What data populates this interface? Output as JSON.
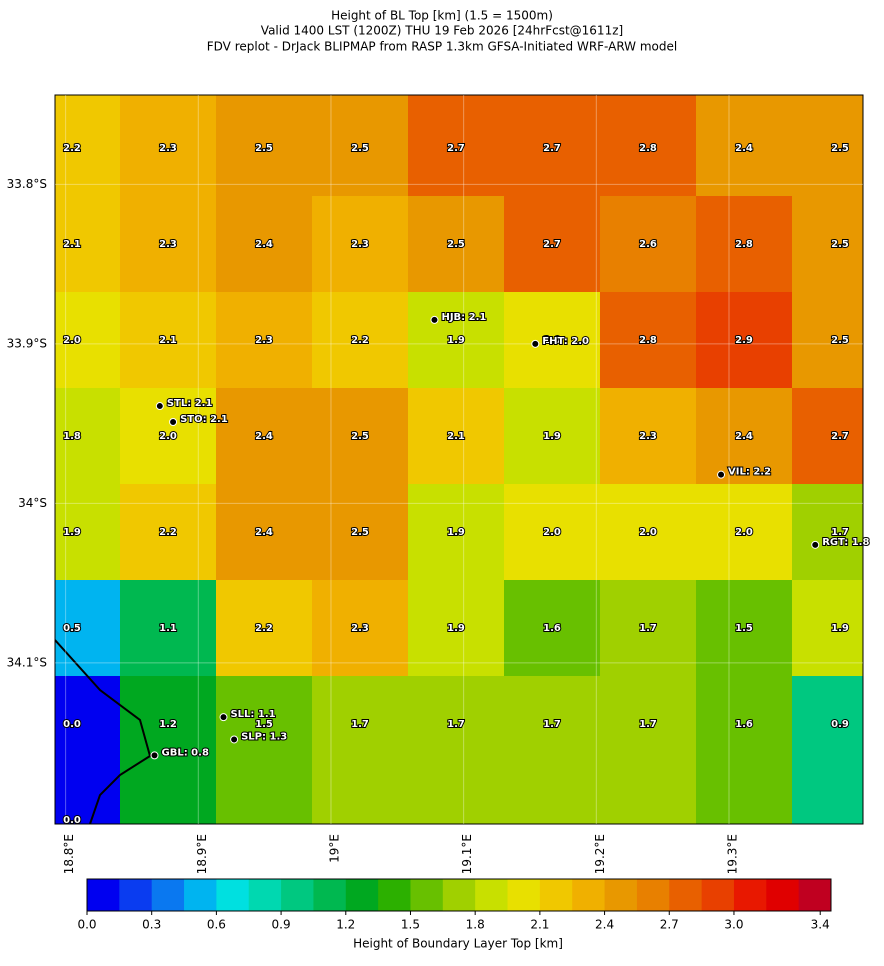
{
  "chart_data": {
    "type": "heatmap",
    "title": "Height of BL Top [km] (1.5 = 1500m)",
    "subtitle": "Valid 1400 LST (1200Z) THU 19 Feb 2026 [24hrFcst@1611z]",
    "caption": "FDV replot - DrJack BLIPMAP from RASP 1.3km GFSA-Initiated WRF-ARW model",
    "xlim": [
      18.792,
      19.401
    ],
    "ylim": [
      -34.201,
      -33.744
    ],
    "xticks": [
      {
        "value": 18.8,
        "label": "18.8°E"
      },
      {
        "value": 18.9,
        "label": "18.9°E"
      },
      {
        "value": 19,
        "label": "19°E"
      },
      {
        "value": 19.1,
        "label": "19.1°E"
      },
      {
        "value": 19.2,
        "label": "19.2°E"
      },
      {
        "value": 19.3,
        "label": "19.3°E"
      }
    ],
    "yticks": [
      {
        "value": -33.8,
        "label": "33.8°S"
      },
      {
        "value": -33.9,
        "label": "33.9°S"
      },
      {
        "value": -34,
        "label": "34°S"
      },
      {
        "value": -34.1,
        "label": "34.1°S"
      }
    ],
    "grid": {
      "values": [
        [
          2.2,
          2.3,
          2.5,
          2.5,
          2.7,
          2.7,
          2.8,
          2.4,
          2.5
        ],
        [
          2.1,
          2.3,
          2.4,
          2.3,
          2.5,
          2.7,
          2.6,
          2.8,
          2.5
        ],
        [
          2,
          2.1,
          2.3,
          2.2,
          1.9,
          2,
          2.8,
          2.9,
          2.5
        ],
        [
          1.8,
          2,
          2.4,
          2.5,
          2.1,
          1.9,
          2.3,
          2.4,
          2.7
        ],
        [
          1.9,
          2.2,
          2.4,
          2.5,
          1.9,
          2,
          2,
          2,
          1.7
        ],
        [
          0.5,
          1.1,
          2.2,
          2.3,
          1.9,
          1.6,
          1.7,
          1.5,
          1.9
        ],
        [
          0,
          1.2,
          1.5,
          1.7,
          1.7,
          1.7,
          1.7,
          1.6,
          0.9
        ],
        [
          0,
          null,
          null,
          null,
          null,
          null,
          null,
          null,
          null
        ]
      ],
      "value_labels": [
        [
          "2.2",
          "2.3",
          "2.5",
          "2.5",
          "2.7",
          "2.7",
          "2.8",
          "2.4",
          "2.5"
        ],
        [
          "2.1",
          "2.3",
          "2.4",
          "2.3",
          "2.5",
          "2.7",
          "2.6",
          "2.8",
          "2.5"
        ],
        [
          "2.0",
          "2.1",
          "2.3",
          "2.2",
          "1.9",
          "2.0",
          "2.8",
          "2.9",
          "2.5"
        ],
        [
          "1.8",
          "2.0",
          "2.4",
          "2.5",
          "2.1",
          "1.9",
          "2.3",
          "2.4",
          "2.7"
        ],
        [
          "1.9",
          "2.2",
          "2.4",
          "2.5",
          "1.9",
          "2.0",
          "2.0",
          "2.0",
          "1.7"
        ],
        [
          "0.5",
          "1.1",
          "2.2",
          "2.3",
          "1.9",
          "1.6",
          "1.7",
          "1.5",
          "1.9"
        ],
        [
          "0.0",
          "1.2",
          "1.5",
          "1.7",
          "1.7",
          "1.7",
          "1.7",
          "1.6",
          "0.9"
        ],
        [
          "0.0",
          null,
          null,
          null,
          null,
          null,
          null,
          null,
          null
        ]
      ]
    },
    "stations": [
      {
        "label": "HJB: 2.1",
        "lon": 19.078,
        "lat": -33.885
      },
      {
        "label": "FHT: 2.0",
        "lon": 19.154,
        "lat": -33.9
      },
      {
        "label": "STL: 2.1",
        "lon": 18.871,
        "lat": -33.939
      },
      {
        "label": "STO: 2.1",
        "lon": 18.881,
        "lat": -33.949
      },
      {
        "label": "VIL: 2.2",
        "lon": 19.294,
        "lat": -33.982
      },
      {
        "label": "RGT: 1.8",
        "lon": 19.365,
        "lat": -34.026
      },
      {
        "label": "SLL: 1.1",
        "lon": 18.919,
        "lat": -34.134
      },
      {
        "label": "SLP: 1.3",
        "lon": 18.927,
        "lat": -34.148
      },
      {
        "label": "GBL: 0.8",
        "lon": 18.867,
        "lat": -34.158
      }
    ],
    "colorbar": {
      "label": "Height of Boundary Layer Top [km]",
      "step": 0.15,
      "colors": [
        "#0000f0",
        "#0a3cf0",
        "#0a78f0",
        "#00b4f0",
        "#00e0e0",
        "#00d8b0",
        "#00c880",
        "#00b850",
        "#00a820",
        "#2cb000",
        "#68c000",
        "#a0d000",
        "#c8e000",
        "#e8e000",
        "#f0c800",
        "#f0b000",
        "#e89800",
        "#e88000",
        "#e86000",
        "#e84000",
        "#e81800",
        "#e00000",
        "#c00020"
      ],
      "ticks": [
        {
          "value": 0,
          "label": "0.0"
        },
        0.3,
        0.6,
        0.9,
        {
          "value": 1.2,
          "label": "1.2"
        },
        1.5,
        1.8,
        2.1,
        2.4,
        2.7,
        {
          "value": 3,
          "label": "3.0"
        },
        3.4
      ]
    }
  }
}
